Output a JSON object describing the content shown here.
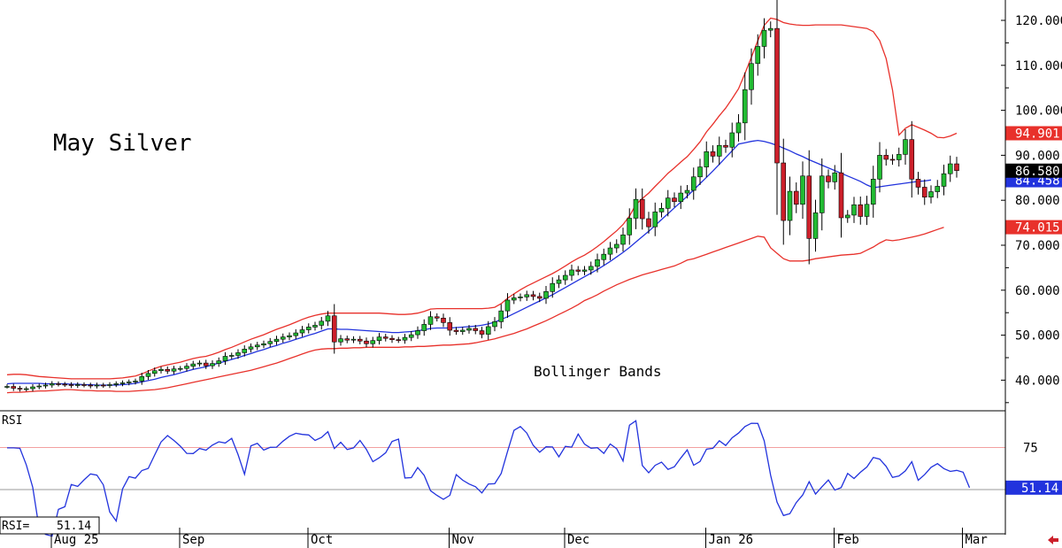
{
  "chart_data": [
    {
      "type": "candlestick",
      "title": "May Silver",
      "annotation": "Bollinger Bands",
      "ylim": [
        33,
        124
      ],
      "y_ticks": [
        "120.000",
        "110.000",
        "100.000",
        "90.000",
        "80.000",
        "70.000",
        "60.000",
        "50.000",
        "40.000"
      ],
      "y_tick_values": [
        120,
        110,
        100,
        90,
        80,
        70,
        60,
        50,
        40
      ],
      "last_price": {
        "label": "86.580",
        "value": 86.58,
        "color": "#000000"
      },
      "badges": [
        {
          "label": "94.901",
          "value": 94.901,
          "color": "#e8312b"
        },
        {
          "label": "84.458",
          "value": 84.458,
          "color": "#2233dd"
        },
        {
          "label": "74.015",
          "value": 74.015,
          "color": "#e8312b"
        }
      ],
      "x_labels": [
        {
          "label": "Aug 25",
          "index": 0
        },
        {
          "label": "Sep",
          "index": 20
        },
        {
          "label": "Oct",
          "index": 40
        },
        {
          "label": "Nov",
          "index": 62
        },
        {
          "label": "Dec",
          "index": 80
        },
        {
          "label": "Jan 26",
          "index": 102
        },
        {
          "label": "Feb",
          "index": 122
        },
        {
          "label": "Mar",
          "index": 142
        }
      ],
      "colors": {
        "up": "#22bb33",
        "down": "#cc1f2a",
        "bands": "#e8312b",
        "mid": "#2233dd"
      },
      "closes": [
        38.6,
        38.2,
        38.0,
        38.1,
        38.5,
        38.7,
        38.9,
        39.2,
        39.1,
        39.0,
        38.8,
        39.0,
        38.9,
        38.7,
        38.9,
        38.8,
        39.0,
        39.2,
        39.4,
        39.6,
        39.8,
        40.8,
        41.5,
        42.1,
        42.4,
        42.0,
        42.5,
        42.6,
        43.1,
        43.6,
        43.8,
        43.2,
        43.7,
        44.3,
        45.3,
        45.5,
        46.1,
        46.9,
        47.4,
        47.8,
        48.1,
        48.6,
        49.1,
        49.6,
        49.9,
        50.5,
        51.2,
        51.8,
        52.2,
        53.1,
        54.3,
        48.5,
        49.2,
        48.9,
        49.1,
        48.7,
        48.1,
        48.8,
        49.6,
        49.3,
        49.0,
        48.9,
        49.5,
        50.1,
        51.0,
        52.4,
        54.1,
        53.8,
        52.8,
        51.1,
        50.8,
        51.1,
        51.5,
        51.0,
        50.2,
        51.9,
        53.0,
        55.4,
        57.8,
        58.3,
        58.5,
        59.0,
        58.6,
        58.2,
        59.7,
        61.5,
        62.3,
        63.3,
        64.5,
        64.2,
        64.5,
        65.3,
        66.8,
        68.0,
        69.4,
        70.2,
        72.3,
        76.0,
        80.2,
        75.9,
        74.1,
        77.4,
        78.2,
        80.5,
        79.7,
        81.6,
        82.2,
        85.2,
        87.4,
        90.8,
        89.8,
        92.2,
        91.8,
        95.0,
        97.2,
        104.6,
        110.4,
        114.2,
        117.8,
        118.2,
        88.3,
        75.5,
        82.0,
        79.1,
        85.4,
        71.5,
        77.2,
        85.4,
        84.1,
        86.1,
        76.1,
        76.7,
        79.0,
        76.4,
        79.1,
        84.7,
        90.0,
        89.1,
        89.0,
        90.2,
        93.5,
        84.7,
        82.9,
        80.7,
        81.9,
        83.1,
        85.9,
        88.1,
        86.6
      ],
      "upper_band": [
        41.2,
        41.3,
        41.3,
        41.2,
        41.0,
        40.8,
        40.7,
        40.6,
        40.5,
        40.4,
        40.3,
        40.3,
        40.3,
        40.3,
        40.3,
        40.3,
        40.3,
        40.4,
        40.5,
        40.7,
        40.9,
        41.4,
        42.0,
        42.6,
        43.1,
        43.4,
        43.7,
        44.0,
        44.4,
        44.8,
        45.1,
        45.3,
        45.7,
        46.2,
        46.8,
        47.3,
        47.9,
        48.5,
        49.1,
        49.6,
        50.1,
        50.7,
        51.3,
        51.8,
        52.3,
        52.9,
        53.5,
        54.0,
        54.4,
        54.7,
        54.9,
        54.9,
        54.9,
        54.9,
        54.9,
        54.9,
        54.9,
        54.9,
        54.9,
        54.8,
        54.7,
        54.6,
        54.6,
        54.7,
        54.9,
        55.3,
        55.8,
        55.9,
        55.9,
        55.9,
        55.9,
        55.9,
        55.9,
        55.9,
        55.9,
        56.0,
        56.2,
        57.0,
        58.2,
        59.2,
        60.1,
        60.9,
        61.6,
        62.3,
        63.0,
        63.7,
        64.5,
        65.4,
        66.3,
        67.1,
        67.8,
        68.7,
        69.7,
        70.8,
        72.0,
        73.2,
        74.6,
        76.5,
        79.0,
        80.4,
        81.6,
        83.1,
        84.5,
        86.0,
        87.2,
        88.5,
        89.7,
        91.3,
        93.0,
        95.2,
        96.9,
        98.8,
        100.5,
        102.6,
        104.8,
        108.2,
        111.8,
        115.5,
        118.9,
        120.5,
        120.2,
        119.5,
        119.2,
        119.0,
        118.9,
        118.9,
        119.0,
        119.0,
        119.0,
        119.0,
        119.0,
        118.8,
        118.6,
        118.4,
        118.2,
        117.5,
        115.5,
        111.5,
        104.5,
        94.5,
        96.0,
        96.8,
        96.2,
        95.6,
        94.9,
        94.0,
        93.9,
        94.3,
        94.9
      ],
      "mid_band": [
        39.2,
        39.3,
        39.3,
        39.3,
        39.3,
        39.3,
        39.2,
        39.2,
        39.2,
        39.2,
        39.1,
        39.1,
        39.0,
        39.0,
        38.9,
        38.9,
        38.9,
        38.9,
        39.0,
        39.1,
        39.3,
        39.6,
        39.9,
        40.2,
        40.6,
        40.9,
        41.2,
        41.6,
        42.0,
        42.4,
        42.7,
        43.0,
        43.4,
        43.8,
        44.2,
        44.6,
        45.0,
        45.5,
        45.9,
        46.4,
        46.8,
        47.3,
        47.7,
        48.2,
        48.6,
        49.1,
        49.5,
        50.0,
        50.4,
        50.9,
        51.4,
        51.4,
        51.3,
        51.3,
        51.2,
        51.1,
        51.0,
        50.9,
        50.8,
        50.7,
        50.6,
        50.6,
        50.7,
        50.8,
        51.0,
        51.2,
        51.5,
        51.6,
        51.6,
        51.6,
        51.7,
        51.8,
        51.9,
        52.0,
        52.2,
        52.5,
        52.9,
        53.5,
        54.1,
        54.8,
        55.5,
        56.2,
        56.9,
        57.6,
        58.3,
        59.0,
        59.8,
        60.6,
        61.4,
        62.2,
        63.0,
        63.8,
        64.6,
        65.5,
        66.4,
        67.4,
        68.4,
        69.5,
        70.7,
        71.9,
        73.1,
        74.4,
        75.7,
        77.0,
        78.3,
        79.6,
        80.9,
        82.3,
        83.7,
        85.1,
        86.5,
        88.0,
        89.5,
        91.0,
        92.5,
        92.8,
        93.1,
        93.3,
        93.1,
        92.7,
        92.2,
        91.6,
        91.0,
        90.3,
        89.7,
        89.0,
        88.4,
        87.8,
        87.2,
        86.6,
        86.0,
        85.4,
        84.8,
        84.2,
        83.4,
        82.8,
        83.0,
        83.2,
        83.4,
        83.6,
        83.8,
        84.0,
        84.2,
        84.3,
        84.5
      ],
      "lower_band": [
        37.2,
        37.3,
        37.3,
        37.4,
        37.5,
        37.6,
        37.6,
        37.7,
        37.8,
        37.9,
        37.9,
        37.8,
        37.7,
        37.7,
        37.6,
        37.6,
        37.6,
        37.5,
        37.5,
        37.5,
        37.6,
        37.7,
        37.8,
        37.9,
        38.1,
        38.3,
        38.6,
        38.9,
        39.2,
        39.5,
        39.8,
        40.1,
        40.4,
        40.7,
        41.0,
        41.3,
        41.6,
        41.9,
        42.2,
        42.6,
        43.0,
        43.4,
        43.8,
        44.3,
        44.8,
        45.3,
        45.8,
        46.3,
        46.7,
        46.9,
        47.0,
        47.0,
        47.1,
        47.1,
        47.2,
        47.2,
        47.3,
        47.3,
        47.3,
        47.3,
        47.3,
        47.3,
        47.4,
        47.4,
        47.5,
        47.5,
        47.6,
        47.7,
        47.8,
        47.8,
        47.9,
        48.0,
        48.1,
        48.3,
        48.6,
        48.9,
        49.2,
        49.6,
        50.0,
        50.4,
        50.9,
        51.4,
        52.0,
        52.6,
        53.2,
        53.9,
        54.6,
        55.3,
        56.0,
        56.8,
        57.7,
        58.3,
        59.0,
        59.8,
        60.5,
        61.2,
        61.8,
        62.4,
        62.9,
        63.4,
        63.8,
        64.2,
        64.6,
        65.0,
        65.4,
        66.0,
        66.7,
        67.0,
        67.5,
        68.0,
        68.5,
        69.0,
        69.5,
        70.0,
        70.5,
        71.0,
        71.5,
        72.0,
        71.8,
        69.4,
        68.2,
        67.0,
        66.5,
        66.5,
        66.5,
        66.7,
        67.0,
        67.2,
        67.4,
        67.6,
        67.8,
        67.9,
        68.0,
        68.2,
        68.9,
        69.6,
        70.5,
        71.2,
        71.0,
        71.2,
        71.5,
        71.8,
        72.1,
        72.5,
        73.0,
        73.5,
        74.0
      ]
    },
    {
      "type": "line",
      "title": "RSI",
      "ylabel": "RSI",
      "ylim": [
        9,
        95
      ],
      "reference_lines": [
        75,
        50
      ],
      "y_ticks": [
        "75"
      ],
      "value_box": {
        "label": "RSI=",
        "value": "51.14"
      },
      "last_badge": {
        "label": "51.14",
        "value": 51.14,
        "color": "#2233dd"
      },
      "color": "#2233dd",
      "values": [
        74.8,
        74.8,
        74.5,
        64.6,
        51.3,
        26.7,
        23.3,
        22.3,
        38.2,
        39.8,
        53.0,
        51.9,
        55.8,
        59.3,
        58.6,
        52.8,
        36.7,
        31.3,
        50.4,
        57.7,
        56.8,
        61.3,
        62.6,
        70.6,
        78.3,
        82.1,
        79.2,
        75.8,
        71.5,
        71.4,
        74.4,
        73.4,
        76.4,
        78.4,
        77.7,
        80.5,
        70.8,
        59.1,
        76.0,
        77.5,
        73.5,
        75.1,
        75.2,
        78.8,
        81.7,
        83.5,
        82.8,
        82.5,
        79.2,
        81.0,
        84.4,
        74.4,
        78.1,
        73.8,
        74.8,
        79.2,
        73.9,
        66.6,
        68.9,
        71.9,
        78.6,
        80.0,
        56.9,
        57.1,
        63.1,
        58.4,
        49.3,
        46.5,
        44.2,
        46.6,
        58.9,
        55.6,
        53.3,
        51.7,
        48.0,
        53.3,
        53.5,
        59.6,
        72.7,
        85.2,
        87.5,
        83.6,
        76.3,
        72.2,
        75.4,
        75.3,
        69.5,
        75.7,
        75.2,
        83.0,
        77.0,
        74.6,
        74.9,
        71.5,
        77.1,
        74.3,
        67.0,
        88.3,
        90.9,
        64.3,
        60.0,
        64.4,
        66.3,
        62.0,
        63.6,
        68.8,
        73.6,
        64.5,
        66.7,
        74.0,
        74.5,
        79.0,
        76.2,
        80.8,
        83.6,
        87.5,
        89.4,
        89.3,
        79.0,
        58.4,
        42.6,
        34.6,
        35.7,
        42.3,
        46.8,
        54.7,
        47.3,
        51.7,
        55.7,
        49.7,
        51.2,
        59.6,
        56.6,
        60.3,
        63.4,
        69.1,
        68.1,
        63.8,
        57.2,
        58.1,
        61.1,
        66.6,
        55.5,
        58.9,
        63.2,
        65.4,
        62.5,
        60.8,
        61.4,
        60.3,
        51.1
      ]
    }
  ]
}
